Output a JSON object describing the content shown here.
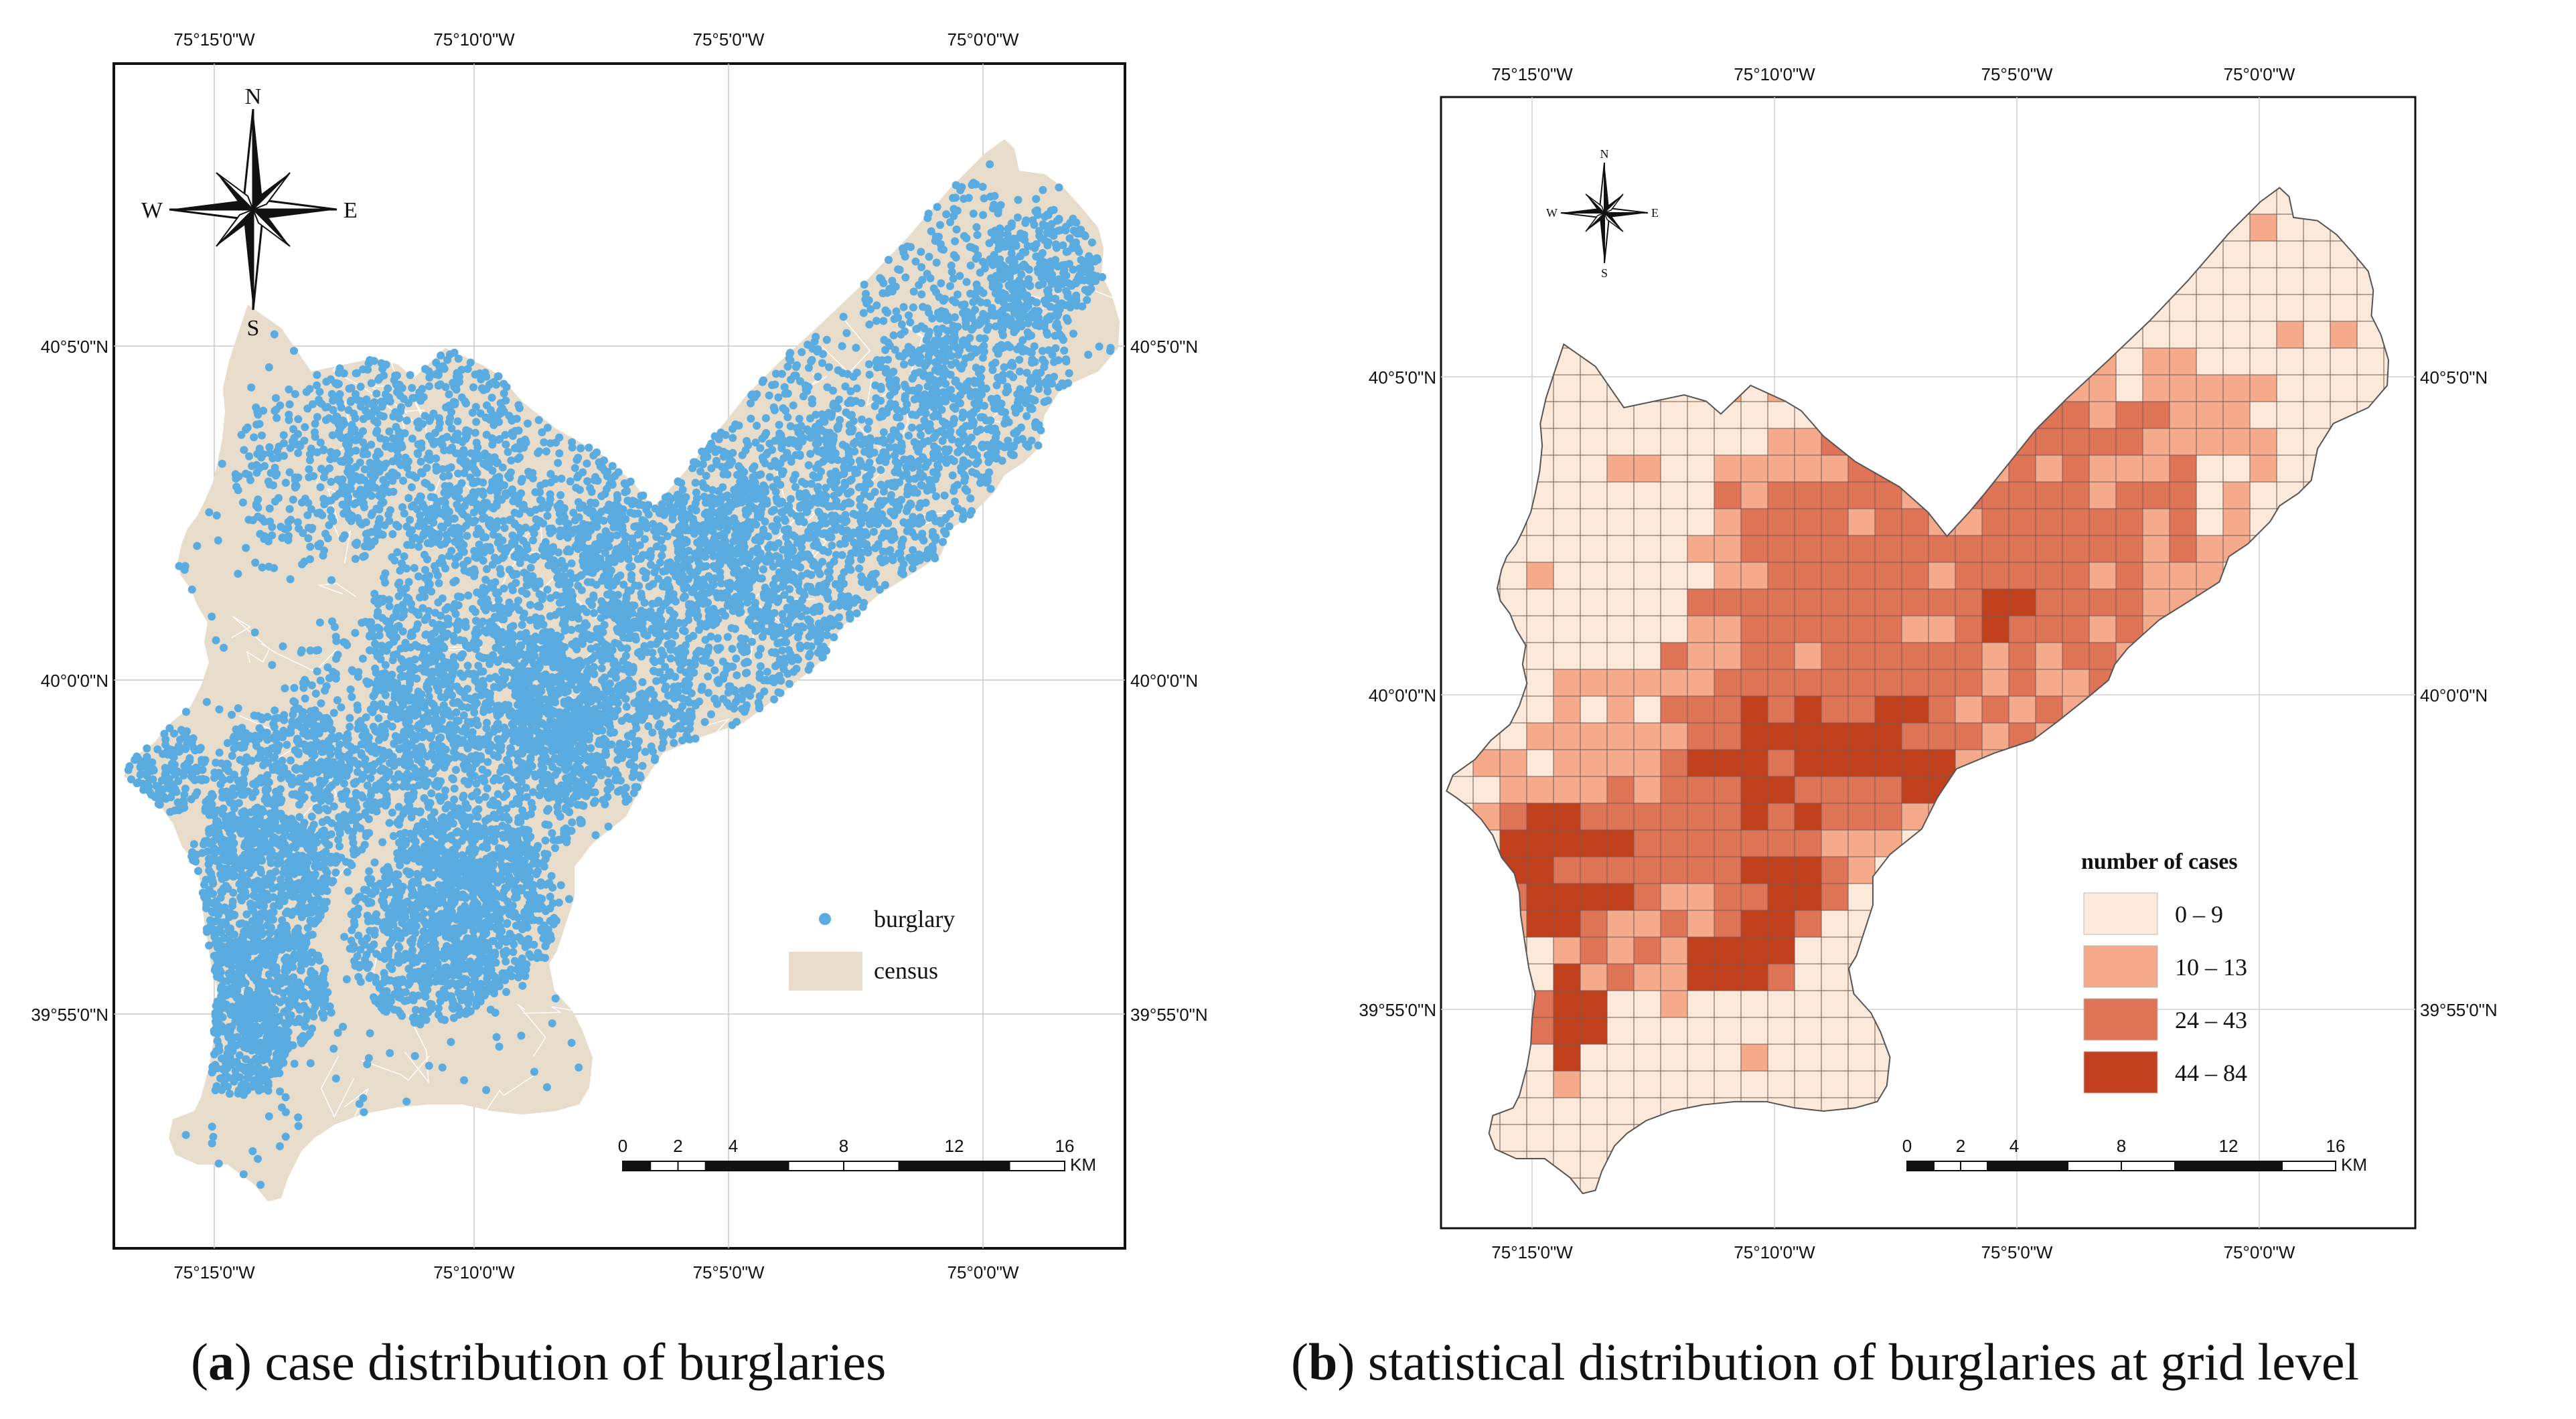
{
  "panel_a": {
    "top_labels": [
      "75°15'0\"W",
      "75°10'0\"W",
      "75°5'0\"W",
      "75°0'0\"W"
    ],
    "bottom_labels": [
      "75°15'0\"W",
      "75°10'0\"W",
      "75°5'0\"W",
      "75°0'0\"W"
    ],
    "left_labels": [
      "40°5'0\"N",
      "40°0'0\"N",
      "39°55'0\"N"
    ],
    "right_labels": [
      "40°5'0\"N",
      "40°0'0\"N",
      "39°55'0\"N"
    ],
    "compass": {
      "n": "N",
      "s": "S",
      "e": "E",
      "w": "W"
    },
    "legend": {
      "point_label": "burglary",
      "area_label": "census",
      "point_color": "#5aabdf",
      "area_color": "#e8dccb"
    },
    "scale": {
      "ticks": [
        "0",
        "2",
        "4",
        "8",
        "12",
        "16"
      ],
      "unit": "KM"
    },
    "caption_letter": "a",
    "caption_text": "case distribution of burglaries"
  },
  "panel_b": {
    "top_labels": [
      "75°15'0\"W",
      "75°10'0\"W",
      "75°5'0\"W",
      "75°0'0\"W"
    ],
    "bottom_labels": [
      "75°15'0\"W",
      "75°10'0\"W",
      "75°5'0\"W",
      "75°0'0\"W"
    ],
    "left_labels": [
      "40°5'0\"N",
      "40°0'0\"N",
      "39°55'0\"N"
    ],
    "right_labels": [
      "40°5'0\"N",
      "40°0'0\"N",
      "39°55'0\"N"
    ],
    "compass": {
      "n": "N",
      "s": "S",
      "e": "E",
      "w": "W"
    },
    "legend": {
      "title": "number of cases",
      "classes": [
        {
          "label": "0 – 9",
          "color": "#fde9d9"
        },
        {
          "label": "10 – 13",
          "color": "#f4a98a"
        },
        {
          "label": "24 – 43",
          "color": "#df7356"
        },
        {
          "label": "44 – 84",
          "color": "#c2401d"
        }
      ]
    },
    "scale": {
      "ticks": [
        "0",
        "2",
        "4",
        "8",
        "12",
        "16"
      ],
      "unit": "KM"
    },
    "caption_letter": "b",
    "caption_text": "statistical distribution of burglaries at grid level"
  }
}
